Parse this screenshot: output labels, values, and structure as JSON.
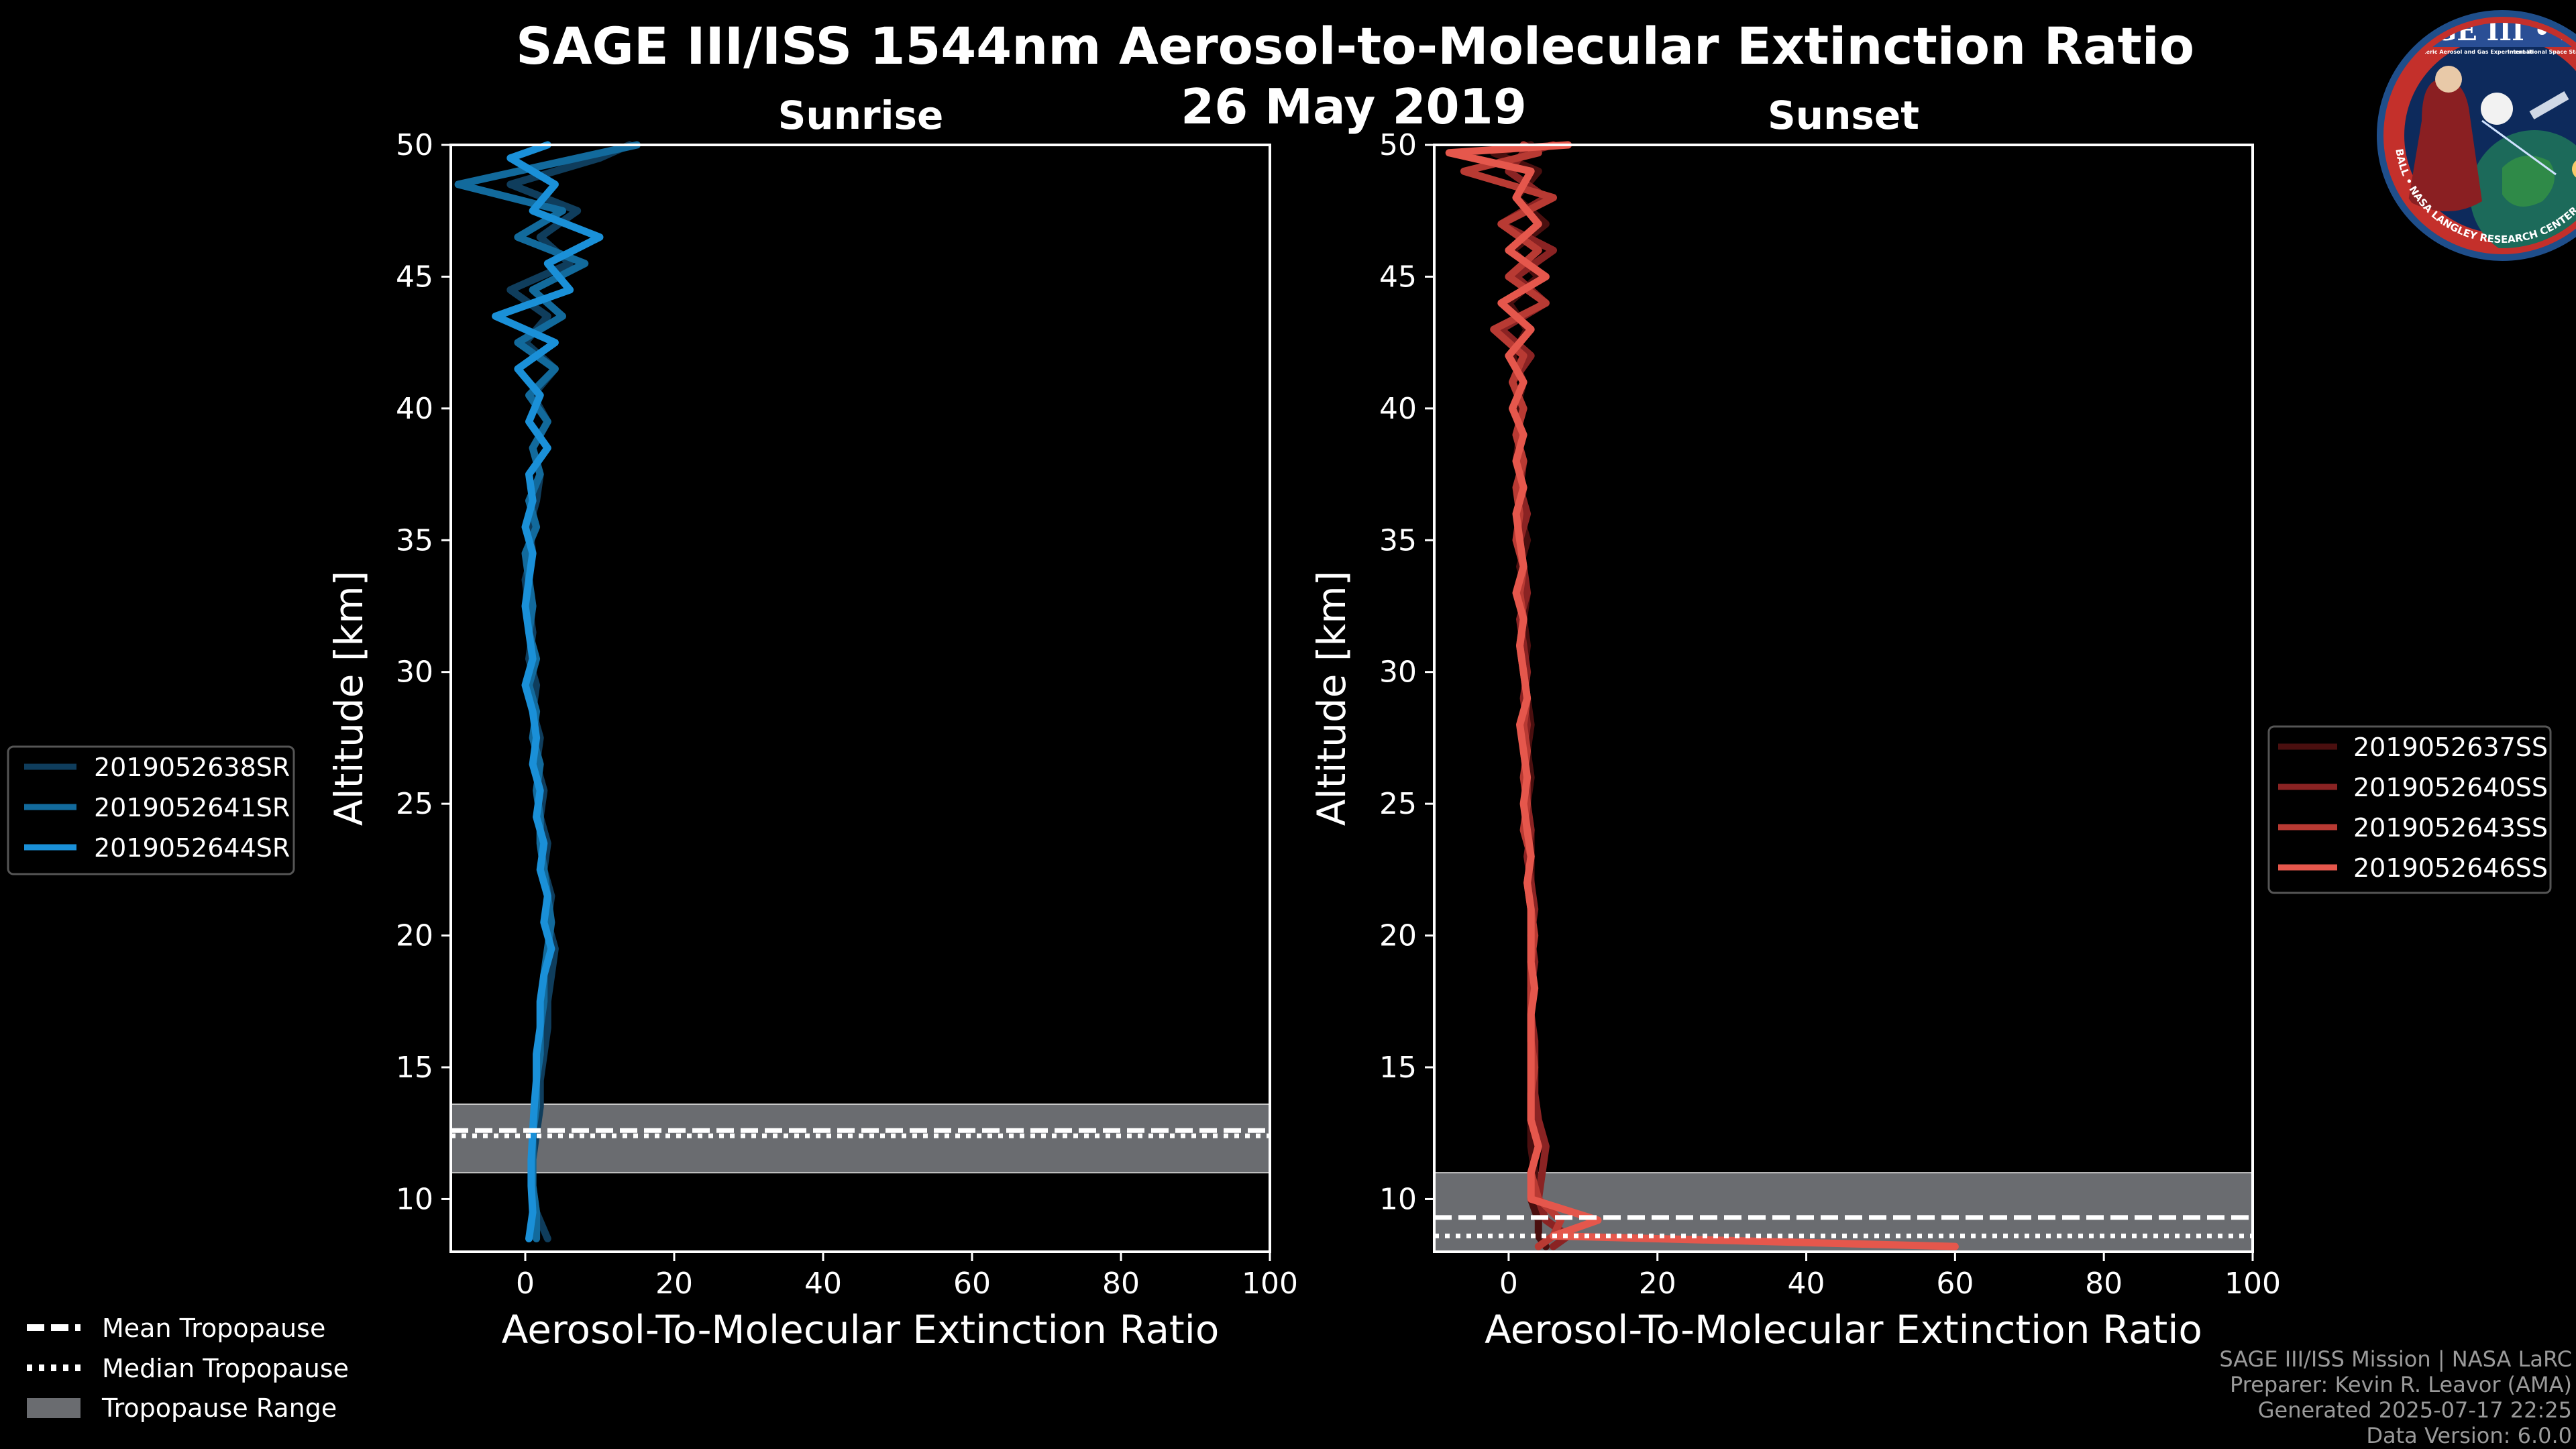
{
  "title": {
    "main": "SAGE III/ISS 1544nm Aerosol-to-Molecular Extinction Ratio",
    "date": "26 May 2019"
  },
  "logo": {
    "name": "SAGE III • ISS",
    "ring": "BALL • NASA LANGLEY RESEARCH CENTER • TAS • ESA",
    "tag1": "Stratospheric Aerosol and Gas Experiment III",
    "tag2": "International Space Station"
  },
  "footer": {
    "line1": "SAGE III/ISS Mission | NASA LaRC",
    "line2": "Preparer: Kevin R. Leavor (AMA)",
    "line3": "Generated 2025-07-17 22:25",
    "line4": "Data Version: 6.0.0"
  },
  "tropopause_legend": {
    "mean": "Mean Tropopause",
    "median": "Median Tropopause",
    "range": "Tropopause Range"
  },
  "colors": {
    "background": "#000000",
    "tropopause_band": "#6a6c70",
    "sr1": "#0f3d5c",
    "sr2": "#126a9c",
    "sr3": "#1a90d8",
    "ss1": "#4a0f0f",
    "ss2": "#8a2323",
    "ss3": "#b83a33",
    "ss4": "#e5574c"
  },
  "chart_data": [
    {
      "type": "line",
      "title": "Sunrise",
      "xlabel": "Aerosol-To-Molecular Extinction Ratio",
      "ylabel": "Altitude [km]",
      "xlim": [
        -10,
        100
      ],
      "ylim": [
        8,
        50
      ],
      "xticks": [
        0,
        20,
        40,
        60,
        80,
        100
      ],
      "yticks": [
        10,
        15,
        20,
        25,
        30,
        35,
        40,
        45,
        50
      ],
      "legend_position": "left",
      "tropopause": {
        "mean": 12.6,
        "median": 12.4,
        "range": [
          11.0,
          13.6
        ]
      },
      "altitudes": [
        8.5,
        9.5,
        10.5,
        11.5,
        12.5,
        13.5,
        14.5,
        15.5,
        16.5,
        17.5,
        18.5,
        19.5,
        20.5,
        21.5,
        22.5,
        23.5,
        24.5,
        25.5,
        26.5,
        27.5,
        28.5,
        29.5,
        30.5,
        31.5,
        32.5,
        33.5,
        34.5,
        35.5,
        36.5,
        37.5,
        38.5,
        39.5,
        40.5,
        41.5,
        42.5,
        43.5,
        44.5,
        45.5,
        46.5,
        47.5,
        48.5,
        49.5,
        50.0
      ],
      "series": [
        {
          "name": "2019052638SR",
          "color": "#0f3d5c",
          "values": [
            3,
            1.5,
            1,
            1,
            1.5,
            2,
            2,
            2.5,
            3,
            3,
            3.5,
            4,
            3,
            3.5,
            2.5,
            3,
            2,
            2.5,
            1.5,
            2,
            1,
            1.5,
            0.5,
            1,
            0.5,
            0,
            1,
            0.5,
            1.5,
            2,
            1,
            3,
            1,
            4,
            0,
            3,
            -2,
            6,
            2,
            7,
            -2,
            10,
            14
          ]
        },
        {
          "name": "2019052641SR",
          "color": "#126a9c",
          "values": [
            1.5,
            1.5,
            1,
            1,
            1,
            1.5,
            1.5,
            2,
            2,
            2.5,
            2.5,
            3,
            3.5,
            3,
            2.5,
            2,
            2,
            1.5,
            2,
            1,
            1.5,
            0.5,
            1.5,
            0.5,
            1,
            0.5,
            0,
            1.5,
            0.5,
            2,
            1,
            3,
            0.5,
            4,
            -1,
            5,
            1,
            8,
            -1,
            5,
            -9,
            7,
            15
          ]
        },
        {
          "name": "2019052644SR",
          "color": "#1a90d8",
          "values": [
            0.5,
            1,
            0.8,
            0.8,
            1,
            1.2,
            1.5,
            1.5,
            2,
            2,
            2.5,
            3.5,
            2.5,
            3,
            2,
            2.5,
            1.5,
            2,
            1,
            1.5,
            1,
            0,
            1,
            0.5,
            0,
            0.5,
            1,
            0,
            1,
            0.5,
            3,
            0.5,
            2,
            -1,
            4,
            -4,
            6,
            3,
            10,
            1,
            4,
            -2,
            3
          ]
        }
      ]
    },
    {
      "type": "line",
      "title": "Sunset",
      "xlabel": "Aerosol-To-Molecular Extinction Ratio",
      "ylabel": "Altitude [km]",
      "xlim": [
        -10,
        100
      ],
      "ylim": [
        8,
        50
      ],
      "xticks": [
        0,
        20,
        40,
        60,
        80,
        100
      ],
      "yticks": [
        10,
        15,
        20,
        25,
        30,
        35,
        40,
        45,
        50
      ],
      "legend_position": "right",
      "tropopause": {
        "mean": 9.3,
        "median": 8.6,
        "range": [
          8.0,
          11.0
        ]
      },
      "altitudes": [
        8.2,
        8.6,
        9.2,
        10.0,
        11.0,
        12.0,
        13.0,
        14.0,
        15.0,
        16.0,
        17.0,
        18.0,
        19.0,
        20.0,
        21.0,
        22.0,
        23.0,
        24.0,
        25.0,
        26.0,
        27.0,
        28.0,
        29.0,
        30.0,
        31.0,
        32.0,
        33.0,
        34.0,
        35.0,
        36.0,
        37.0,
        38.0,
        39.0,
        40.0,
        41.0,
        42.0,
        43.0,
        44.0,
        45.0,
        46.0,
        47.0,
        48.0,
        49.0,
        49.7,
        50.0
      ],
      "series": [
        {
          "name": "2019052637SS",
          "color": "#4a0f0f",
          "values": [
            5,
            4,
            4,
            3,
            3.5,
            3,
            3,
            3,
            3,
            3,
            3,
            3,
            3,
            3,
            3,
            3,
            3,
            3,
            2.5,
            3,
            2.5,
            3,
            2.5,
            2,
            2.5,
            2,
            2.5,
            1.5,
            2.5,
            1.5,
            2,
            1,
            1.5,
            1,
            2,
            0.5,
            2.5,
            0,
            4,
            0.5,
            5,
            1,
            4,
            -2,
            3
          ]
        },
        {
          "name": "2019052640SS",
          "color": "#8a2323",
          "values": [
            6,
            8,
            5,
            4,
            4.5,
            5,
            4,
            3.5,
            3.5,
            3.5,
            3,
            3,
            3.5,
            3,
            3.5,
            3,
            2.5,
            3,
            2.5,
            2.5,
            2,
            2.5,
            2,
            2.5,
            2,
            1.5,
            2.5,
            2,
            1.5,
            2.5,
            1.5,
            2,
            1,
            2,
            0.5,
            3,
            -1,
            5,
            1,
            6,
            -1,
            5,
            0,
            2,
            6
          ]
        },
        {
          "name": "2019052643SS",
          "color": "#b83a33",
          "values": [
            4,
            6,
            7,
            4,
            3,
            4,
            3,
            3,
            3.5,
            3,
            3,
            3,
            3,
            3.5,
            3,
            2.5,
            3,
            2,
            2.5,
            2,
            2.5,
            2,
            2.5,
            2,
            1.5,
            2,
            1.5,
            2,
            1,
            1.5,
            1,
            2,
            1,
            2,
            0.5,
            2,
            -2,
            5,
            0,
            4,
            -1,
            6,
            -6,
            4,
            2
          ]
        },
        {
          "name": "2019052646SS",
          "color": "#e5574c",
          "values": [
            60,
            6,
            12,
            3,
            3,
            4,
            3,
            3,
            3,
            3,
            3,
            3.5,
            3,
            3,
            3,
            2.5,
            3,
            2.5,
            2,
            2.5,
            2,
            1.5,
            2.5,
            2,
            1.5,
            2,
            1,
            2,
            1.5,
            1,
            2,
            1,
            2,
            0.5,
            2,
            0,
            3,
            -1,
            5,
            0,
            4,
            1,
            3,
            -8,
            8
          ]
        }
      ]
    }
  ]
}
